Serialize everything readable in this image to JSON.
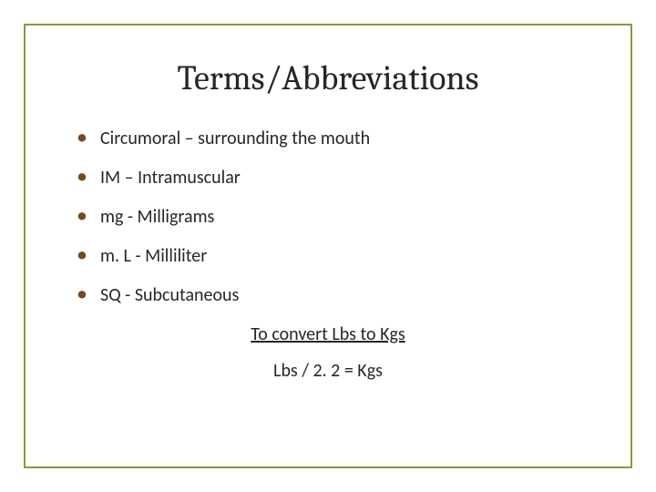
{
  "title": "Terms/Abbreviations",
  "bullets": [
    "Circumoral – surrounding the mouth",
    "IM – Intramuscular",
    "mg - Milligrams",
    "m. L -  Milliliter",
    "SQ -  Subcutaneous"
  ],
  "convert_heading": "To convert Lbs to Kgs",
  "formula": "Lbs / 2. 2 = Kgs",
  "colors": {
    "border": "#8a9a3a",
    "bullet": "#7a4a1a",
    "text": "#262626",
    "background": "#ffffff"
  },
  "typography": {
    "title_font": "Cambria/serif",
    "title_size_pt": 28,
    "body_font": "Calibri/sans-serif",
    "body_size_pt": 15
  }
}
